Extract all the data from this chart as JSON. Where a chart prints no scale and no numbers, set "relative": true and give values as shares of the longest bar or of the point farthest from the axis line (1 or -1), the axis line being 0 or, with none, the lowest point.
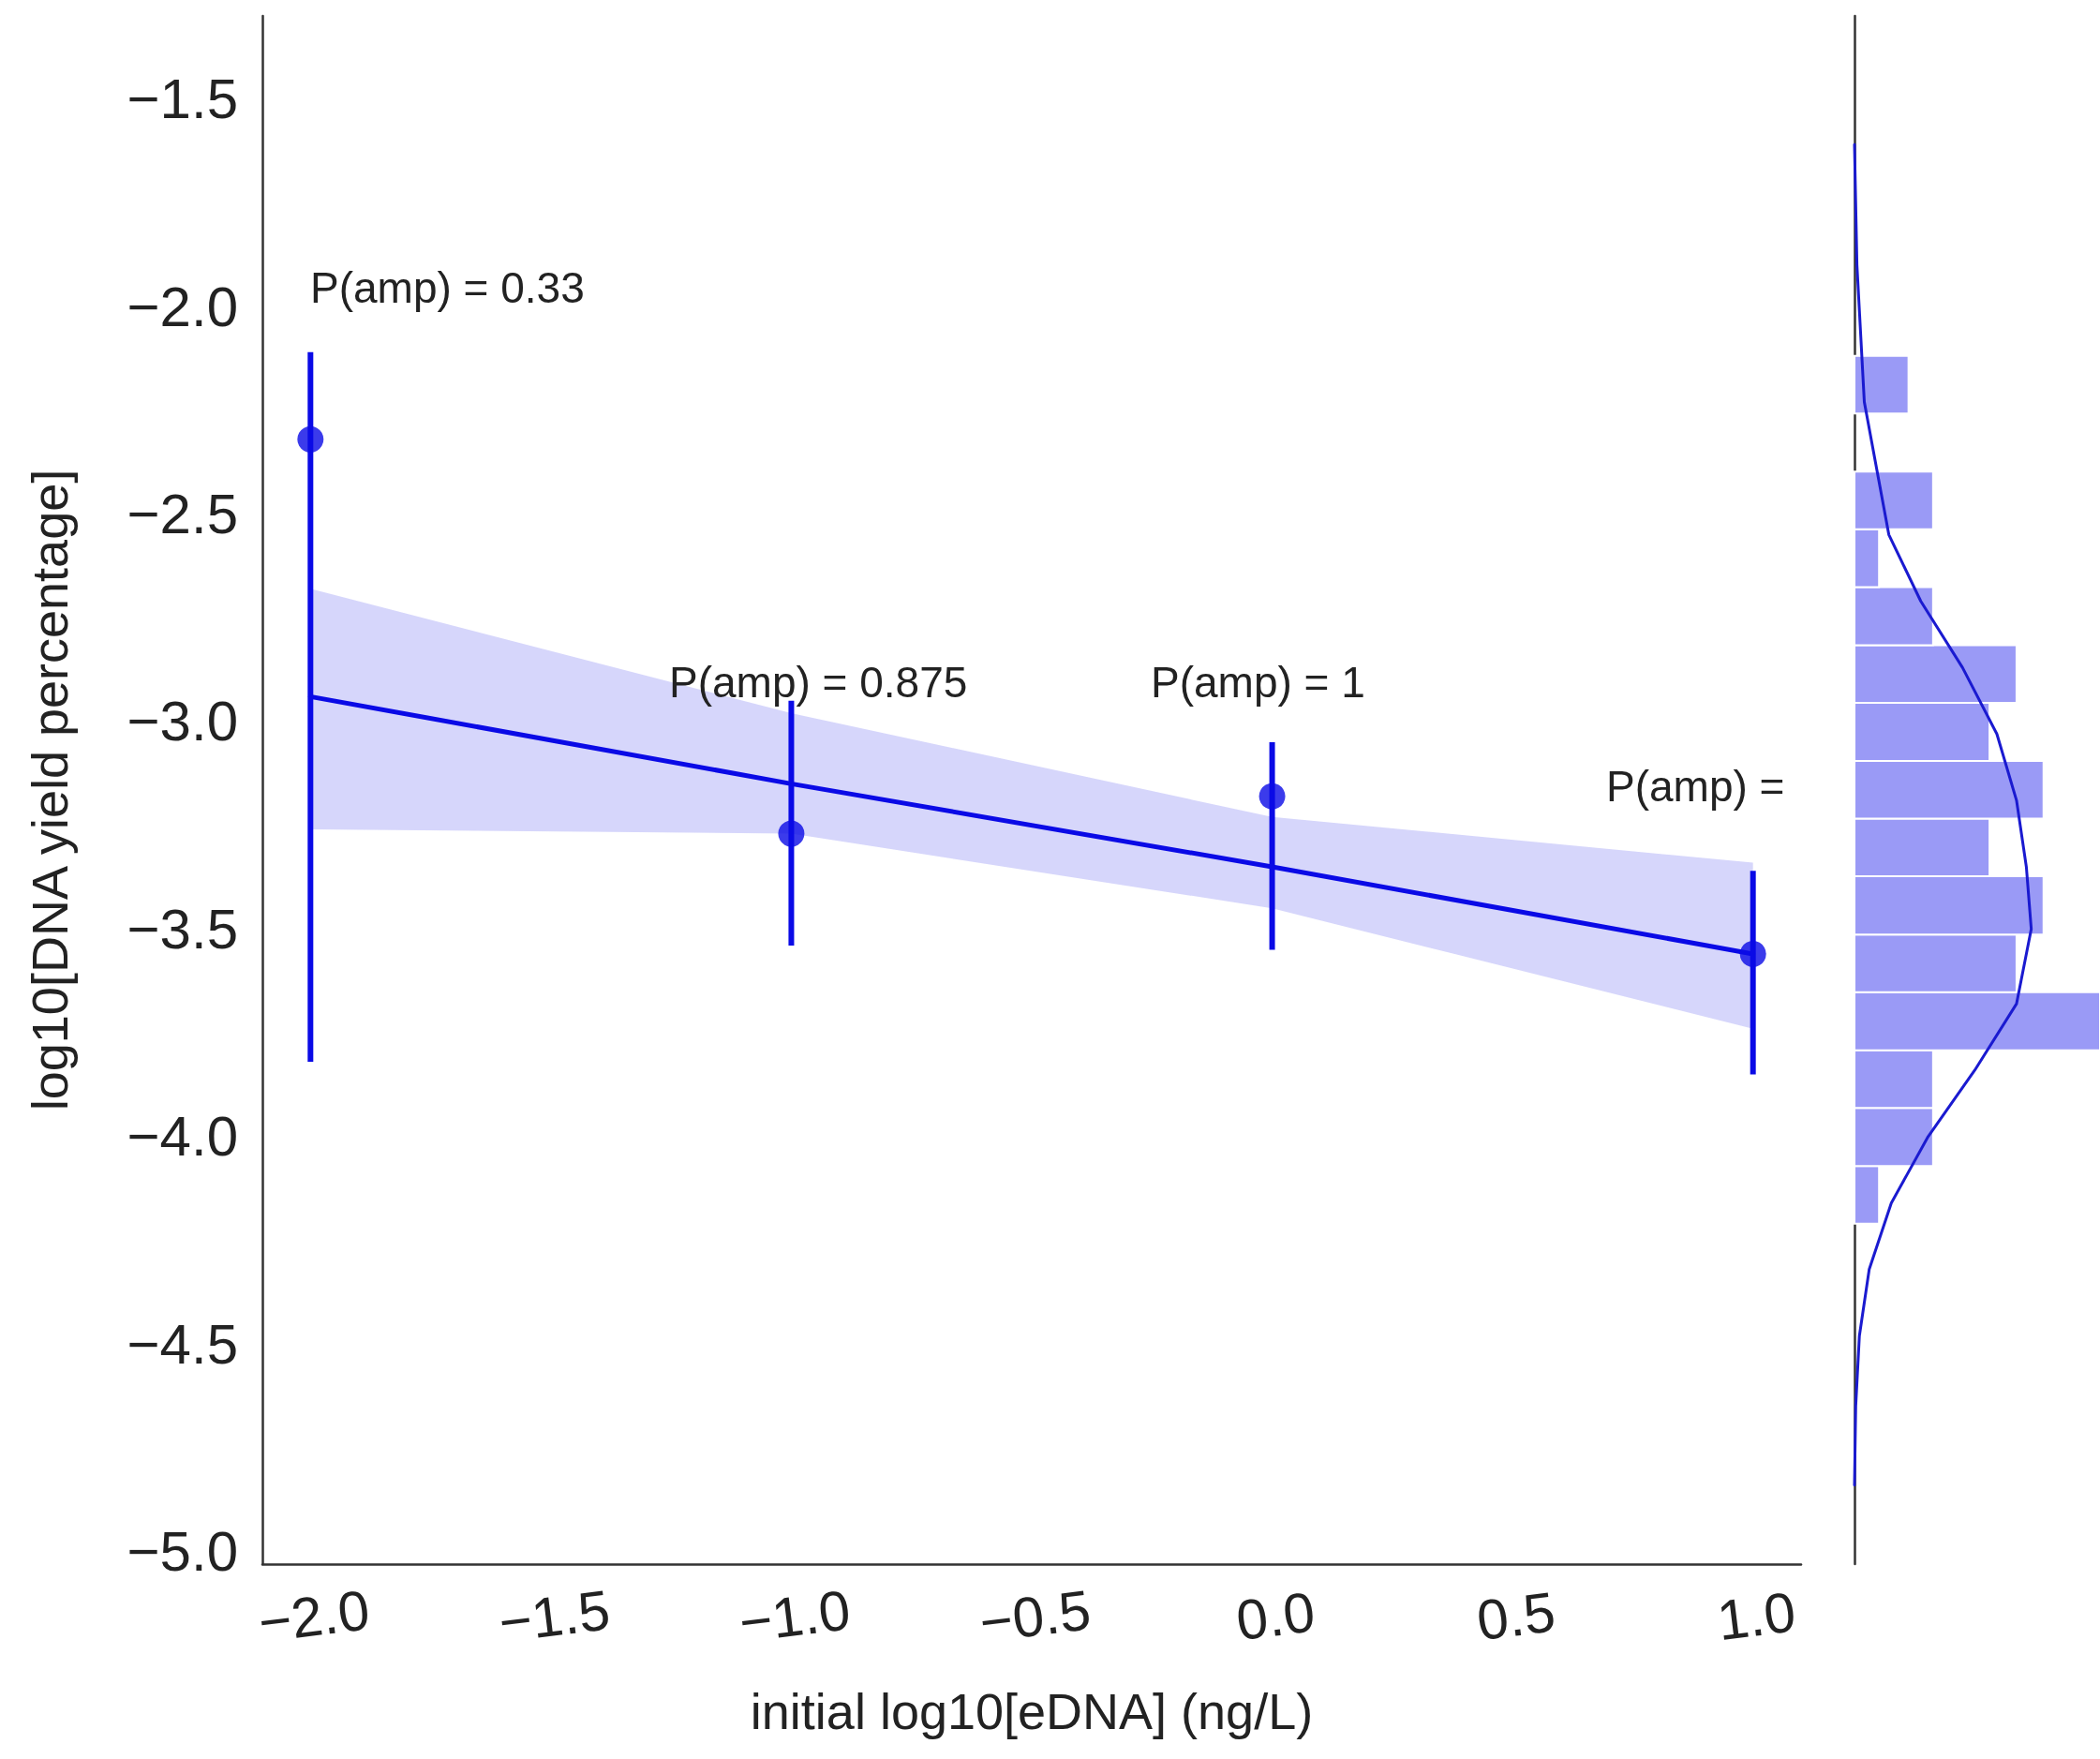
{
  "chart_data": [
    {
      "type": "scatter",
      "xlabel": "initial log10[eDNA] (ng/L)",
      "ylabel": "log10[DNA yield percentage]",
      "xlim": [
        -2.1,
        1.1
      ],
      "ylim": [
        -5.03,
        -1.3
      ],
      "xticks": [
        {
          "value": -2,
          "label": "−2.0"
        },
        {
          "value": -1.5,
          "label": "−1.5"
        },
        {
          "value": -1,
          "label": "−1.0"
        },
        {
          "value": -0.5,
          "label": "−0.5"
        },
        {
          "value": 0,
          "label": "0.0"
        },
        {
          "value": 0.5,
          "label": "0.5"
        },
        {
          "value": 1,
          "label": "1.0"
        }
      ],
      "yticks": [
        {
          "value": -5,
          "label": "−5.0"
        },
        {
          "value": -4.5,
          "label": "−4.5"
        },
        {
          "value": -4,
          "label": "−4.0"
        },
        {
          "value": -3.5,
          "label": "−3.5"
        },
        {
          "value": -3,
          "label": "−3.0"
        },
        {
          "value": -2.5,
          "label": "−2.5"
        },
        {
          "value": -2,
          "label": "−2.0"
        },
        {
          "value": -1.5,
          "label": "−1.5"
        }
      ],
      "series": [
        {
          "type": "line",
          "marker": "none",
          "color": "#0a0ae6",
          "x": [
            -2,
            -1,
            0,
            1
          ],
          "values": [
            -2.94,
            -3.15,
            -3.35,
            -3.56
          ],
          "lower": [
            -3.26,
            -3.27,
            -3.45,
            -3.74
          ],
          "upper": [
            -2.68,
            -2.98,
            -3.23,
            -3.34
          ]
        },
        {
          "marker": "circle",
          "color": "#0a0ae6",
          "x": [
            -2,
            -1,
            0,
            1
          ],
          "values": [
            -2.32,
            -3.27,
            -3.18,
            -3.56
          ],
          "errors": [
            [
              -3.82,
              -2.11
            ],
            [
              -3.54,
              -2.95
            ],
            [
              -3.55,
              -3.05
            ],
            [
              -3.85,
              -3.36
            ]
          ]
        }
      ],
      "annotations": [
        "P(amp) = 0.33",
        "P(amp) = 0.875",
        "P(amp) = 1",
        "P(amp) ="
      ]
    },
    {
      "type": "histogram",
      "orientation": "horizontal",
      "relative": true,
      "ylim": [
        -5.03,
        -1.3
      ],
      "series": [
        {
          "color": "#9a9af6",
          "bins": [
            -4.21,
            -4.071,
            -3.931,
            -3.792,
            -3.652,
            -3.513,
            -3.373,
            -3.234,
            -3.095,
            -2.955,
            -2.816,
            -2.676,
            -2.537,
            -2.398,
            -2.258,
            -2.119
          ],
          "values": [
            0.1,
            0.32,
            0.32,
            1,
            0.66,
            0.77,
            0.55,
            0.77,
            0.55,
            0.66,
            0.32,
            0.1,
            0.32,
            0,
            0.22
          ]
        },
        {
          "type": "line",
          "color": "#1a1ad0",
          "x": [
            -1.61,
            -1.9,
            -2.23,
            -2.55,
            -2.71,
            -2.87,
            -3.03,
            -3.19,
            -3.35,
            -3.5,
            -3.68,
            -3.84,
            -4.0,
            -4.16,
            -4.32,
            -4.48,
            -4.65,
            -4.84
          ],
          "values": [
            0,
            0.01,
            0.04,
            0.14,
            0.27,
            0.44,
            0.58,
            0.66,
            0.7,
            0.72,
            0.66,
            0.49,
            0.3,
            0.15,
            0.06,
            0.02,
            0.005,
            0
          ]
        }
      ]
    }
  ]
}
